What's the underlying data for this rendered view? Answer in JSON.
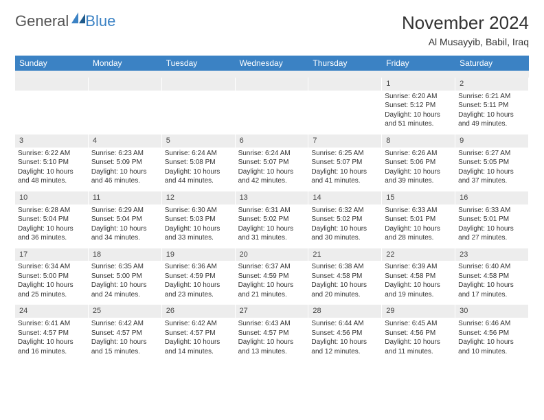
{
  "logo": {
    "text1": "General",
    "text2": "Blue"
  },
  "title": {
    "month": "November 2024",
    "location": "Al Musayyib, Babil, Iraq"
  },
  "colors": {
    "header_bg": "#3b82c4",
    "header_text": "#ffffff",
    "daynum_bg": "#ededed",
    "text": "#333333",
    "logo_gray": "#555555",
    "logo_blue": "#3b82c4"
  },
  "typography": {
    "title_fontsize": 26,
    "location_fontsize": 14,
    "header_fontsize": 12,
    "daynum_fontsize": 11,
    "cell_fontsize": 10
  },
  "weekdays": [
    "Sunday",
    "Monday",
    "Tuesday",
    "Wednesday",
    "Thursday",
    "Friday",
    "Saturday"
  ],
  "layout": {
    "columns": 7,
    "rows": 5,
    "blank_leading_cells": 5
  },
  "days": [
    {
      "n": 1,
      "sunrise": "6:20 AM",
      "sunset": "5:12 PM",
      "daylight": "10 hours and 51 minutes."
    },
    {
      "n": 2,
      "sunrise": "6:21 AM",
      "sunset": "5:11 PM",
      "daylight": "10 hours and 49 minutes."
    },
    {
      "n": 3,
      "sunrise": "6:22 AM",
      "sunset": "5:10 PM",
      "daylight": "10 hours and 48 minutes."
    },
    {
      "n": 4,
      "sunrise": "6:23 AM",
      "sunset": "5:09 PM",
      "daylight": "10 hours and 46 minutes."
    },
    {
      "n": 5,
      "sunrise": "6:24 AM",
      "sunset": "5:08 PM",
      "daylight": "10 hours and 44 minutes."
    },
    {
      "n": 6,
      "sunrise": "6:24 AM",
      "sunset": "5:07 PM",
      "daylight": "10 hours and 42 minutes."
    },
    {
      "n": 7,
      "sunrise": "6:25 AM",
      "sunset": "5:07 PM",
      "daylight": "10 hours and 41 minutes."
    },
    {
      "n": 8,
      "sunrise": "6:26 AM",
      "sunset": "5:06 PM",
      "daylight": "10 hours and 39 minutes."
    },
    {
      "n": 9,
      "sunrise": "6:27 AM",
      "sunset": "5:05 PM",
      "daylight": "10 hours and 37 minutes."
    },
    {
      "n": 10,
      "sunrise": "6:28 AM",
      "sunset": "5:04 PM",
      "daylight": "10 hours and 36 minutes."
    },
    {
      "n": 11,
      "sunrise": "6:29 AM",
      "sunset": "5:04 PM",
      "daylight": "10 hours and 34 minutes."
    },
    {
      "n": 12,
      "sunrise": "6:30 AM",
      "sunset": "5:03 PM",
      "daylight": "10 hours and 33 minutes."
    },
    {
      "n": 13,
      "sunrise": "6:31 AM",
      "sunset": "5:02 PM",
      "daylight": "10 hours and 31 minutes."
    },
    {
      "n": 14,
      "sunrise": "6:32 AM",
      "sunset": "5:02 PM",
      "daylight": "10 hours and 30 minutes."
    },
    {
      "n": 15,
      "sunrise": "6:33 AM",
      "sunset": "5:01 PM",
      "daylight": "10 hours and 28 minutes."
    },
    {
      "n": 16,
      "sunrise": "6:33 AM",
      "sunset": "5:01 PM",
      "daylight": "10 hours and 27 minutes."
    },
    {
      "n": 17,
      "sunrise": "6:34 AM",
      "sunset": "5:00 PM",
      "daylight": "10 hours and 25 minutes."
    },
    {
      "n": 18,
      "sunrise": "6:35 AM",
      "sunset": "5:00 PM",
      "daylight": "10 hours and 24 minutes."
    },
    {
      "n": 19,
      "sunrise": "6:36 AM",
      "sunset": "4:59 PM",
      "daylight": "10 hours and 23 minutes."
    },
    {
      "n": 20,
      "sunrise": "6:37 AM",
      "sunset": "4:59 PM",
      "daylight": "10 hours and 21 minutes."
    },
    {
      "n": 21,
      "sunrise": "6:38 AM",
      "sunset": "4:58 PM",
      "daylight": "10 hours and 20 minutes."
    },
    {
      "n": 22,
      "sunrise": "6:39 AM",
      "sunset": "4:58 PM",
      "daylight": "10 hours and 19 minutes."
    },
    {
      "n": 23,
      "sunrise": "6:40 AM",
      "sunset": "4:58 PM",
      "daylight": "10 hours and 17 minutes."
    },
    {
      "n": 24,
      "sunrise": "6:41 AM",
      "sunset": "4:57 PM",
      "daylight": "10 hours and 16 minutes."
    },
    {
      "n": 25,
      "sunrise": "6:42 AM",
      "sunset": "4:57 PM",
      "daylight": "10 hours and 15 minutes."
    },
    {
      "n": 26,
      "sunrise": "6:42 AM",
      "sunset": "4:57 PM",
      "daylight": "10 hours and 14 minutes."
    },
    {
      "n": 27,
      "sunrise": "6:43 AM",
      "sunset": "4:57 PM",
      "daylight": "10 hours and 13 minutes."
    },
    {
      "n": 28,
      "sunrise": "6:44 AM",
      "sunset": "4:56 PM",
      "daylight": "10 hours and 12 minutes."
    },
    {
      "n": 29,
      "sunrise": "6:45 AM",
      "sunset": "4:56 PM",
      "daylight": "10 hours and 11 minutes."
    },
    {
      "n": 30,
      "sunrise": "6:46 AM",
      "sunset": "4:56 PM",
      "daylight": "10 hours and 10 minutes."
    }
  ],
  "labels": {
    "sunrise": "Sunrise: ",
    "sunset": "Sunset: ",
    "daylight": "Daylight: "
  }
}
